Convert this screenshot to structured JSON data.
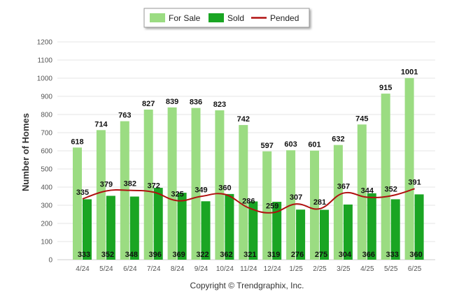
{
  "chart_data": {
    "type": "bar",
    "ylabel": "Number of Homes",
    "ylim": [
      0,
      1200
    ],
    "yticks": [
      0,
      100,
      200,
      300,
      400,
      500,
      600,
      700,
      800,
      900,
      1000,
      1100,
      1200
    ],
    "grid": true,
    "legend_placement": "top-center",
    "categories": [
      "4/24",
      "5/24",
      "6/24",
      "7/24",
      "8/24",
      "9/24",
      "10/24",
      "11/24",
      "12/24",
      "1/25",
      "2/25",
      "3/25",
      "4/25",
      "5/25",
      "6/25"
    ],
    "series": [
      {
        "name": "For Sale",
        "kind": "bar",
        "color": "#9bdc82",
        "values": [
          618,
          714,
          763,
          827,
          839,
          836,
          823,
          742,
          597,
          603,
          601,
          632,
          745,
          915,
          1001
        ]
      },
      {
        "name": "Sold",
        "kind": "bar",
        "color": "#1aa523",
        "values": [
          333,
          352,
          348,
          396,
          369,
          322,
          362,
          321,
          319,
          276,
          275,
          304,
          366,
          333,
          360
        ]
      },
      {
        "name": "Pended",
        "kind": "line",
        "color": "#b01010",
        "values": [
          335,
          379,
          382,
          372,
          325,
          349,
          360,
          286,
          259,
          307,
          281,
          367,
          344,
          352,
          391
        ]
      }
    ]
  },
  "footer": {
    "copyright": "Copyright © Trendgraphix, Inc."
  }
}
